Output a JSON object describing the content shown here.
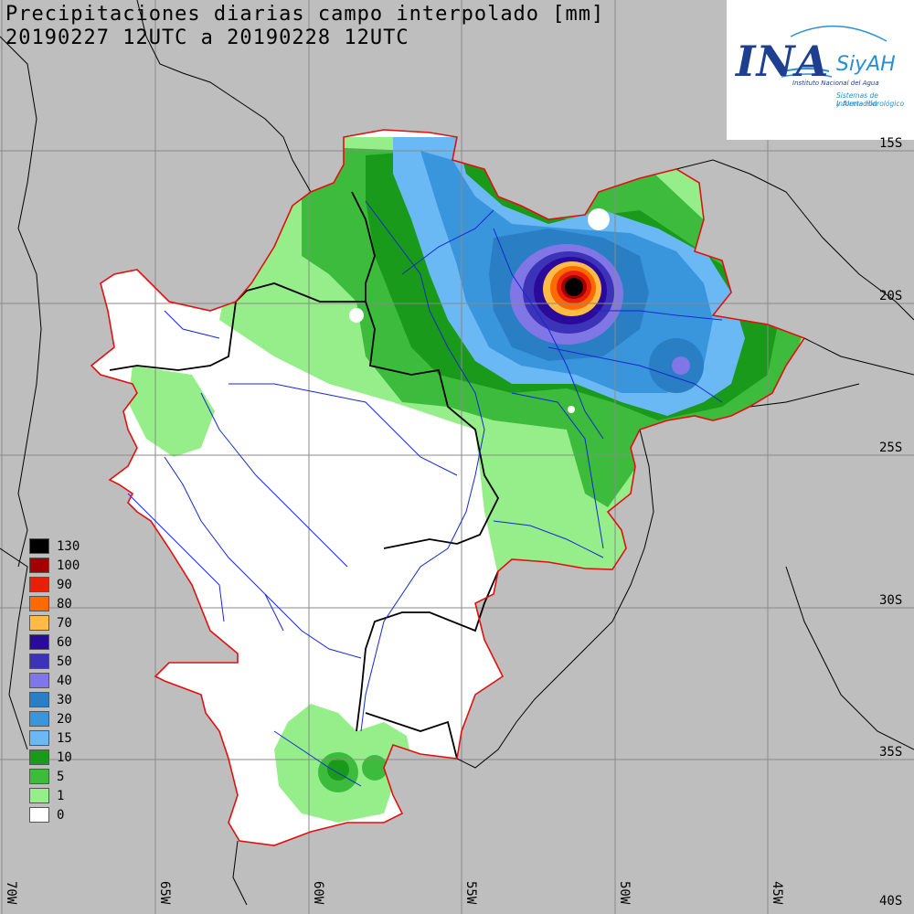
{
  "title": {
    "line1": "Precipitaciones diarias campo interpolado [mm]",
    "line2": "20190227 12UTC a 20190228 12UTC"
  },
  "logo": {
    "name": "INA",
    "siyah": "SiyAH",
    "org": "Instituto Nacional del Agua",
    "system_line1": "Sistemas de Información",
    "system_line2": "y Alerta Hidrológico",
    "colors": {
      "dark": "#1e3f8f",
      "light": "#2a8fd1"
    }
  },
  "lat_labels": [
    {
      "label": "15S",
      "lat": -15
    },
    {
      "label": "20S",
      "lat": -20
    },
    {
      "label": "25S",
      "lat": -25
    },
    {
      "label": "30S",
      "lat": -30
    },
    {
      "label": "35S",
      "lat": -35
    },
    {
      "label": "40S",
      "lat": -40
    }
  ],
  "lon_labels": [
    {
      "label": "70W",
      "lon": -70
    },
    {
      "label": "65W",
      "lon": -65
    },
    {
      "label": "60W",
      "lon": -60
    },
    {
      "label": "55W",
      "lon": -55
    },
    {
      "label": "50W",
      "lon": -50
    },
    {
      "label": "45W",
      "lon": -45
    }
  ],
  "legend": [
    {
      "label": "130",
      "color": "#000000"
    },
    {
      "label": "100",
      "color": "#a50000"
    },
    {
      "label": "90",
      "color": "#e8200a"
    },
    {
      "label": "80",
      "color": "#ff6a00"
    },
    {
      "label": "70",
      "color": "#ffbb44"
    },
    {
      "label": "60",
      "color": "#2a0a9a"
    },
    {
      "label": "50",
      "color": "#3c33b8"
    },
    {
      "label": "40",
      "color": "#8076e6"
    },
    {
      "label": "30",
      "color": "#2a7ec3"
    },
    {
      "label": "20",
      "color": "#3a96dc"
    },
    {
      "label": "15",
      "color": "#6ab8f4"
    },
    {
      "label": "10",
      "color": "#1a9a1a"
    },
    {
      "label": "5",
      "color": "#3dbb3d"
    },
    {
      "label": "1",
      "color": "#96ee8a"
    },
    {
      "label": "0",
      "color": "#ffffff"
    }
  ],
  "colors": {
    "background": "#bebebe",
    "basin_outline": "#e01010",
    "rivers": "#1428d2",
    "borders": "#000000",
    "gridlines": "#8a8a8a",
    "land_gray": "#bebebe"
  }
}
